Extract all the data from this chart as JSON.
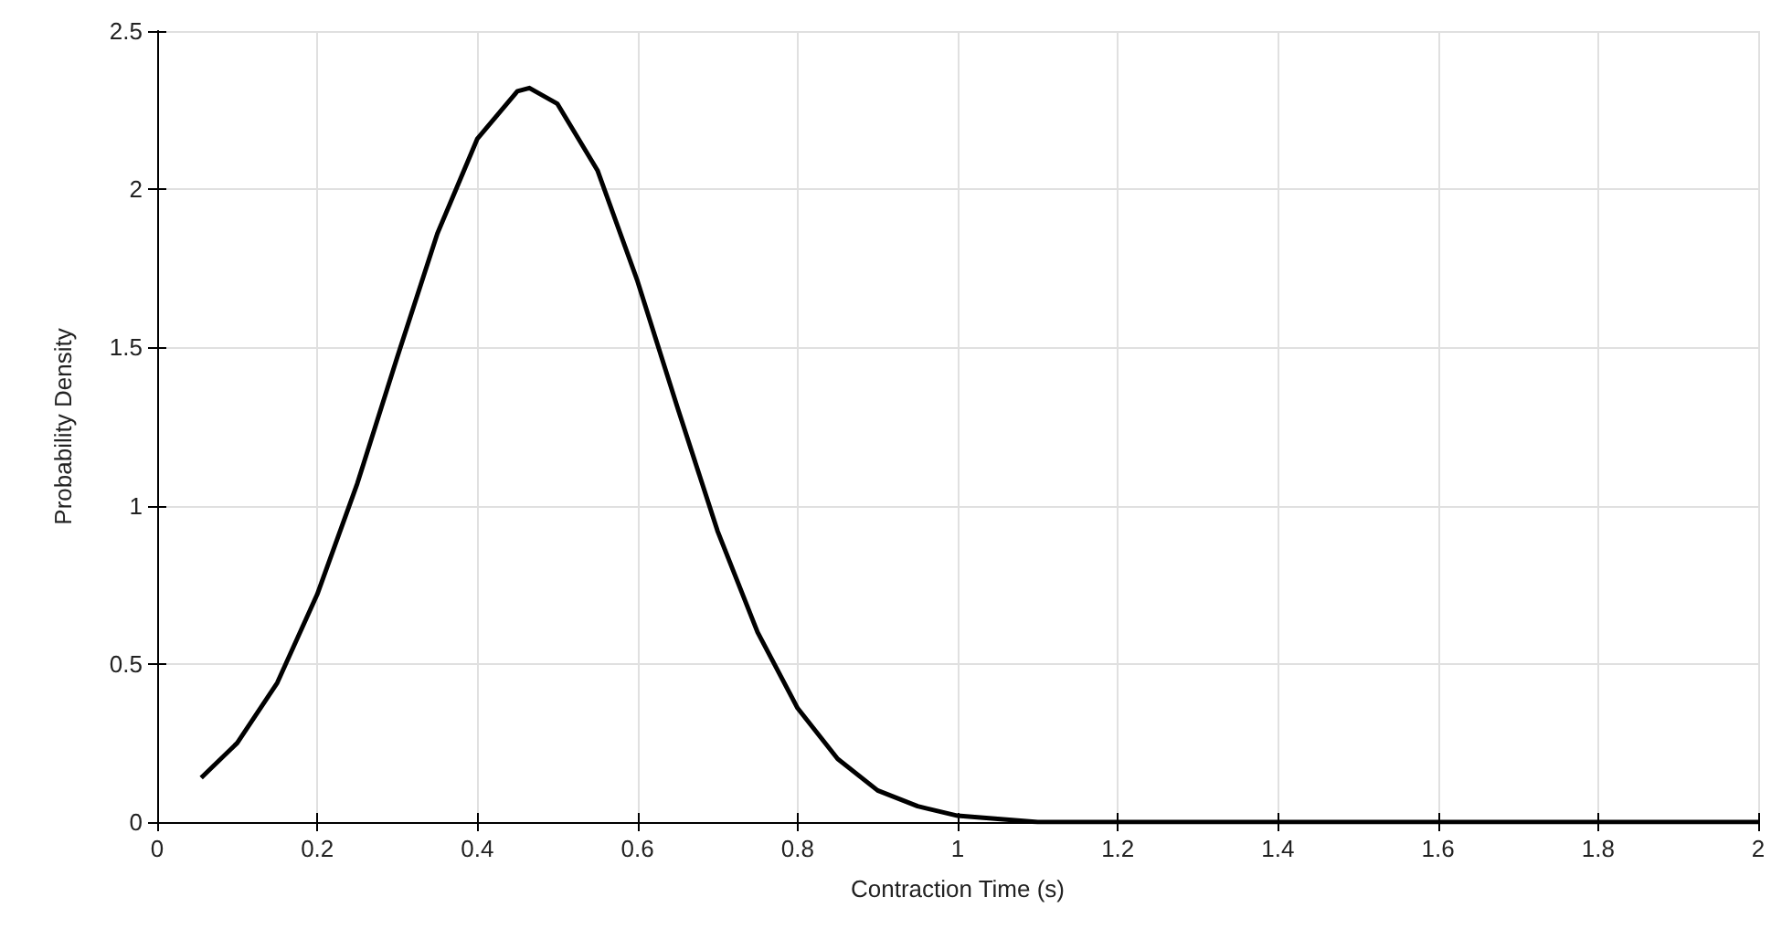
{
  "chart_data": {
    "type": "line",
    "xlabel": "Contraction Time (s)",
    "ylabel": "Probability Density",
    "x": [
      0.055,
      0.1,
      0.15,
      0.2,
      0.25,
      0.3,
      0.35,
      0.4,
      0.45,
      0.465,
      0.5,
      0.55,
      0.6,
      0.65,
      0.7,
      0.75,
      0.8,
      0.85,
      0.9,
      0.95,
      1.0,
      1.05,
      1.1,
      1.2,
      1.4,
      1.6,
      1.8,
      2.0
    ],
    "series": [
      {
        "color": "#000000",
        "values": [
          0.14,
          0.25,
          0.44,
          0.72,
          1.07,
          1.47,
          1.86,
          2.16,
          2.31,
          2.32,
          2.27,
          2.06,
          1.71,
          1.31,
          0.92,
          0.6,
          0.36,
          0.2,
          0.1,
          0.05,
          0.02,
          0.01,
          0,
          0,
          0,
          0,
          0,
          0
        ]
      }
    ],
    "xlim": [
      0,
      2
    ],
    "xticks": [
      0,
      0.2,
      0.4,
      0.6,
      0.8,
      1,
      1.2,
      1.4,
      1.6,
      1.8,
      2
    ],
    "ylim": [
      0,
      2.5
    ],
    "yticks": [
      0,
      0.5,
      1,
      1.5,
      2,
      2.5
    ],
    "grid": true,
    "marker": "none",
    "line_style": "solid"
  }
}
